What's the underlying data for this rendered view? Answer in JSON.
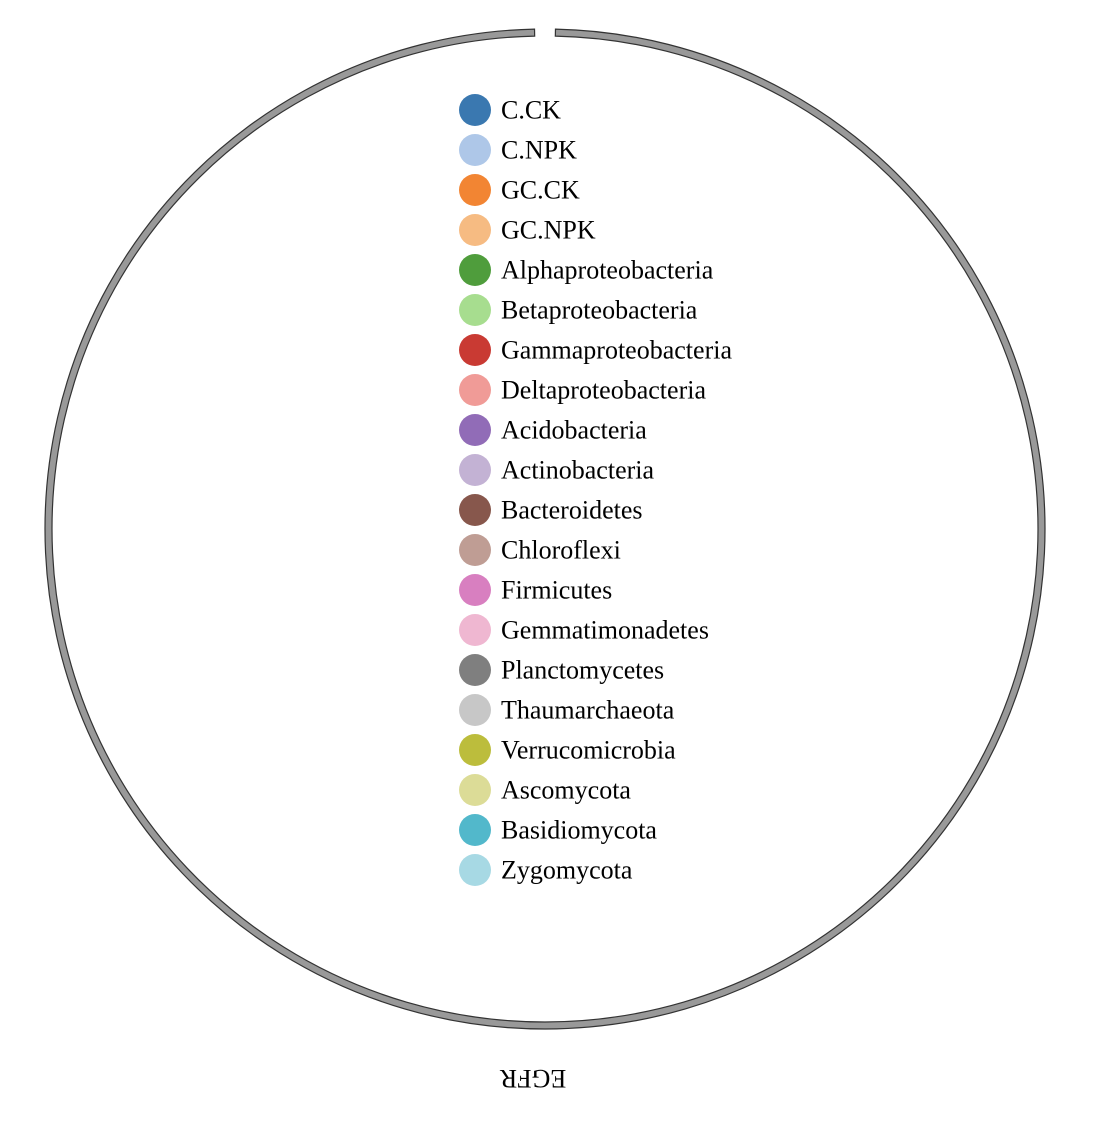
{
  "ring": {
    "label": "EGFR",
    "fill": "#999999",
    "stroke": "#333333"
  },
  "legend": {
    "items": [
      {
        "label": "C.CK",
        "color": "#3a78b0"
      },
      {
        "label": "C.NPK",
        "color": "#aec7e8"
      },
      {
        "label": "GC.CK",
        "color": "#f28533"
      },
      {
        "label": "GC.NPK",
        "color": "#f6bb82"
      },
      {
        "label": "Alphaproteobacteria",
        "color": "#4f9d3c"
      },
      {
        "label": "Betaproteobacteria",
        "color": "#a7dd8f"
      },
      {
        "label": "Gammaproteobacteria",
        "color": "#c93a33"
      },
      {
        "label": "Deltaproteobacteria",
        "color": "#f09b97"
      },
      {
        "label": "Acidobacteria",
        "color": "#916cb7"
      },
      {
        "label": "Actinobacteria",
        "color": "#c3b2d4"
      },
      {
        "label": "Bacteroidetes",
        "color": "#87574c"
      },
      {
        "label": "Chloroflexi",
        "color": "#bf9d94"
      },
      {
        "label": "Firmicutes",
        "color": "#d87fc0"
      },
      {
        "label": "Gemmatimonadetes",
        "color": "#efb7d1"
      },
      {
        "label": "Planctomycetes",
        "color": "#7f7f7f"
      },
      {
        "label": "Thaumarchaeota",
        "color": "#c7c7c7"
      },
      {
        "label": "Verrucomicrobia",
        "color": "#bcbd3c"
      },
      {
        "label": "Ascomycota",
        "color": "#dcdc97"
      },
      {
        "label": "Basidiomycota",
        "color": "#52b8cb"
      },
      {
        "label": "Zygomycota",
        "color": "#a7d9e4"
      }
    ]
  }
}
